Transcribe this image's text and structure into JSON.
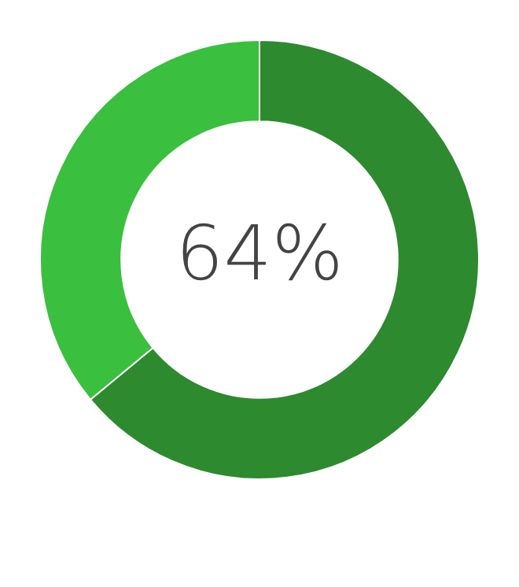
{
  "chart_data": {
    "type": "donut",
    "categories": [
      null,
      null
    ],
    "values": [
      64,
      36
    ],
    "colors": [
      "#2d8a2f",
      "#3abf3e"
    ],
    "annotations": [
      "64%"
    ],
    "legend": false
  }
}
